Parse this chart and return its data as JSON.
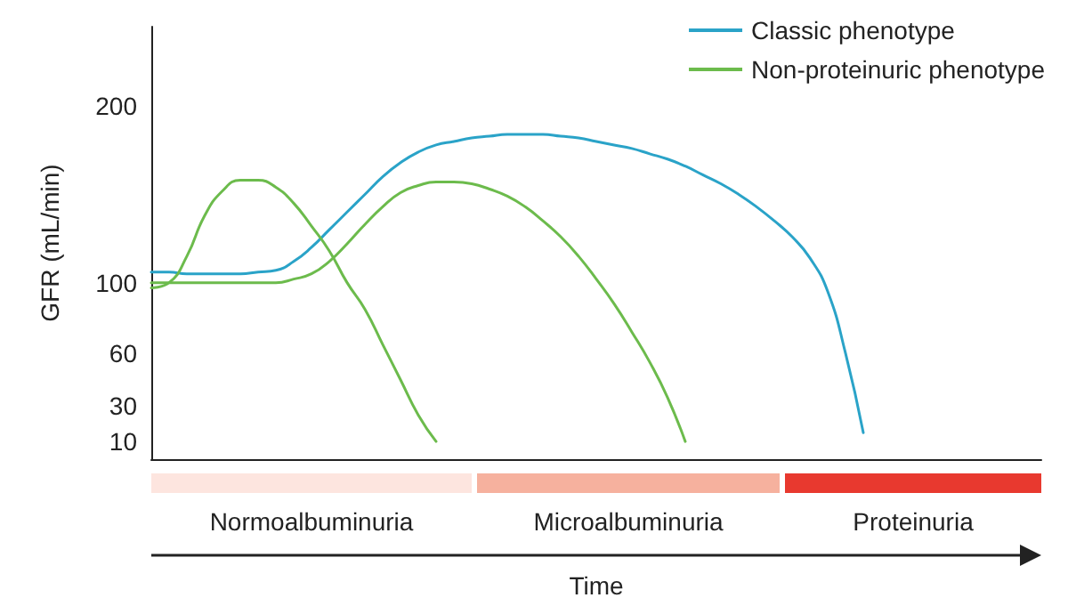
{
  "chart_data": {
    "type": "line",
    "ylabel": "GFR (mL/min)",
    "xlabel": "Time",
    "categories": [
      null,
      null,
      null,
      null,
      null,
      null,
      null,
      null,
      null,
      null,
      null,
      null,
      null,
      null,
      null,
      null,
      null,
      null,
      null,
      null,
      null,
      null,
      null,
      null,
      null,
      null,
      null,
      null,
      null,
      null,
      null,
      null,
      null,
      null,
      null,
      null,
      null,
      null,
      null,
      null,
      null,
      null,
      null,
      null,
      null,
      null,
      null,
      null,
      null,
      null,
      null
    ],
    "series": [
      {
        "name": "Classic phenotype",
        "color": "#2aa3c8",
        "values": [
          106,
          106,
          105,
          105,
          105,
          105,
          106,
          107,
          112,
          120,
          130,
          140,
          150,
          160,
          168,
          174,
          178,
          180,
          182,
          183,
          184,
          184,
          184,
          183,
          182,
          180,
          178,
          176,
          173,
          170,
          166,
          161,
          156,
          150,
          143,
          135,
          126,
          114,
          95,
          60,
          15,
          null,
          null,
          null,
          null,
          null,
          null,
          null,
          null,
          null,
          null
        ]
      },
      {
        "name": "Non-proteinuric phenotype",
        "color": "#6cbb4c",
        "values": [
          97,
          100,
          115,
          138,
          152,
          158,
          158,
          154,
          145,
          132,
          118,
          100,
          85,
          65,
          45,
          25,
          10,
          null,
          null,
          null,
          null,
          null,
          null,
          null,
          null,
          null,
          null,
          null,
          null,
          null,
          null,
          null,
          null,
          null,
          null,
          null,
          null,
          null,
          null,
          null,
          null,
          null,
          null,
          null,
          null,
          null,
          null,
          null,
          null,
          null,
          null
        ]
      },
      {
        "color": "#6cbb4c",
        "values": [
          100,
          100,
          100,
          100,
          100,
          100,
          100,
          100,
          102,
          105,
          112,
          122,
          133,
          143,
          151,
          155,
          157,
          157,
          156,
          153,
          149,
          143,
          135,
          126,
          115,
          102,
          88,
          72,
          55,
          35,
          10,
          null,
          null,
          null,
          null,
          null,
          null,
          null,
          null,
          null,
          null,
          null,
          null,
          null,
          null,
          null,
          null,
          null,
          null,
          null,
          null
        ]
      }
    ],
    "ylim": [
      0,
      245
    ],
    "yticks": [
      10,
      30,
      60,
      100,
      200
    ],
    "tick_labels": "y",
    "grid": false,
    "legend": "top right",
    "marker": "none",
    "line_style": "solid",
    "annotations": [
      "Normoalbuminuria",
      "Microalbuminuria",
      "Proteinuria"
    ]
  }
}
